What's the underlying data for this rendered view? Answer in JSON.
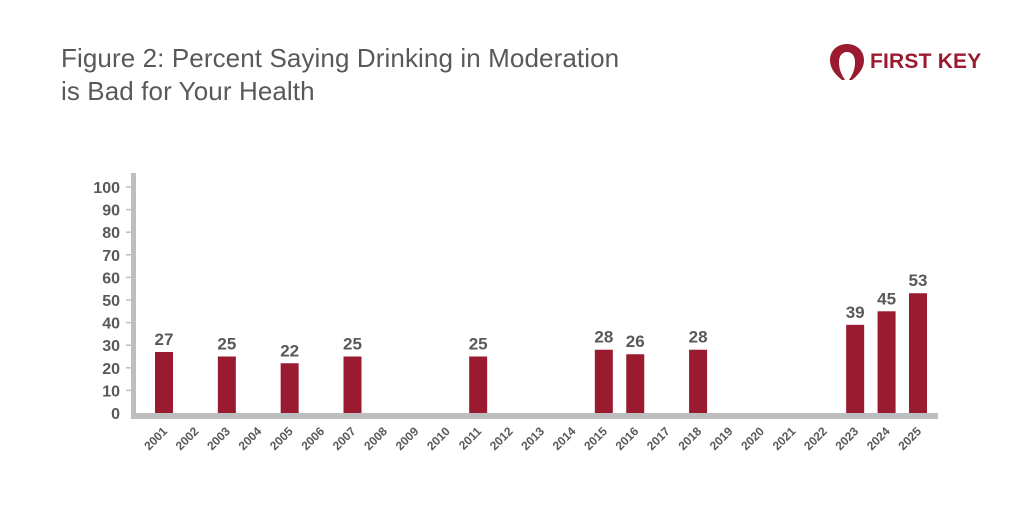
{
  "header": {
    "title_line1": "Figure 2: Percent Saying Drinking in Moderation",
    "title_line2": "is Bad for Your Health"
  },
  "logo": {
    "icon": "keyhole-icon",
    "text": "FIRST KEY",
    "color": "#9a1b30"
  },
  "colors": {
    "bar": "#9a1b30",
    "axis": "#bdbec0",
    "text": "#58595b"
  },
  "chart_data": {
    "type": "bar",
    "title": "Figure 2: Percent Saying Drinking in Moderation is Bad for Your Health",
    "xlabel": "",
    "ylabel": "",
    "ylim": [
      0,
      100
    ],
    "yticks": [
      0,
      10,
      20,
      30,
      40,
      50,
      60,
      70,
      80,
      90,
      100
    ],
    "grid": false,
    "legend": "none",
    "categories": [
      "2001",
      "2002",
      "2003",
      "2004",
      "2005",
      "2006",
      "2007",
      "2008",
      "2009",
      "2010",
      "2011",
      "2012",
      "2013",
      "2014",
      "2015",
      "2016",
      "2017",
      "2018",
      "2019",
      "2020",
      "2021",
      "2022",
      "2023",
      "2024",
      "2025"
    ],
    "values": [
      27,
      null,
      25,
      null,
      22,
      null,
      25,
      null,
      null,
      null,
      25,
      null,
      null,
      null,
      28,
      26,
      null,
      28,
      null,
      null,
      null,
      null,
      39,
      45,
      53
    ],
    "data_labels": true
  }
}
